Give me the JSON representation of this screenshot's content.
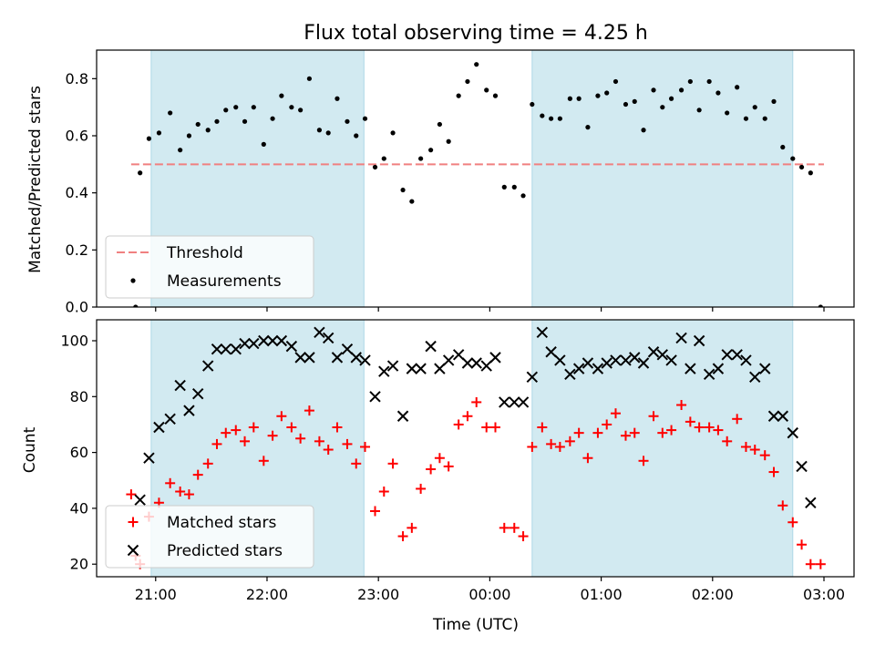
{
  "chart_data": {
    "title": "Flux total observing time = 4.25 h",
    "xlabel": "Time (UTC)",
    "x_ticks": [
      "21:00",
      "22:00",
      "23:00",
      "00:00",
      "01:00",
      "02:00",
      "03:00"
    ],
    "x_range_hours": [
      20.47,
      27.27
    ],
    "shaded_spans": [
      [
        20.96,
        22.87
      ],
      [
        24.38,
        26.72
      ]
    ],
    "span_color": "#add8e6",
    "panels": [
      {
        "type": "scatter",
        "ylabel": "Matched/Predicted stars",
        "ylim": [
          0,
          0.9
        ],
        "yticks": [
          0.0,
          0.2,
          0.4,
          0.6,
          0.8
        ],
        "legend_position": "lower-left",
        "threshold": {
          "name": "Threshold",
          "value": 0.5,
          "x_from": 20.78,
          "x_to": 27.0,
          "color": "#f08080"
        },
        "series": [
          {
            "name": "Measurements",
            "marker": "dot",
            "color": "#000000",
            "points": [
              [
                20.82,
                0.0
              ],
              [
                20.86,
                0.47
              ],
              [
                20.94,
                0.59
              ],
              [
                21.03,
                0.61
              ],
              [
                21.13,
                0.68
              ],
              [
                21.22,
                0.55
              ],
              [
                21.3,
                0.6
              ],
              [
                21.38,
                0.64
              ],
              [
                21.47,
                0.62
              ],
              [
                21.55,
                0.65
              ],
              [
                21.63,
                0.69
              ],
              [
                21.72,
                0.7
              ],
              [
                21.8,
                0.65
              ],
              [
                21.88,
                0.7
              ],
              [
                21.97,
                0.57
              ],
              [
                22.05,
                0.66
              ],
              [
                22.13,
                0.74
              ],
              [
                22.22,
                0.7
              ],
              [
                22.3,
                0.69
              ],
              [
                22.38,
                0.8
              ],
              [
                22.47,
                0.62
              ],
              [
                22.55,
                0.61
              ],
              [
                22.63,
                0.73
              ],
              [
                22.72,
                0.65
              ],
              [
                22.8,
                0.6
              ],
              [
                22.88,
                0.66
              ],
              [
                22.97,
                0.49
              ],
              [
                23.05,
                0.52
              ],
              [
                23.13,
                0.61
              ],
              [
                23.22,
                0.41
              ],
              [
                23.3,
                0.37
              ],
              [
                23.38,
                0.52
              ],
              [
                23.47,
                0.55
              ],
              [
                23.55,
                0.64
              ],
              [
                23.63,
                0.58
              ],
              [
                23.72,
                0.74
              ],
              [
                23.8,
                0.79
              ],
              [
                23.88,
                0.85
              ],
              [
                23.97,
                0.76
              ],
              [
                24.05,
                0.74
              ],
              [
                24.13,
                0.42
              ],
              [
                24.22,
                0.42
              ],
              [
                24.3,
                0.39
              ],
              [
                24.38,
                0.71
              ],
              [
                24.47,
                0.67
              ],
              [
                24.55,
                0.66
              ],
              [
                24.63,
                0.66
              ],
              [
                24.72,
                0.73
              ],
              [
                24.8,
                0.73
              ],
              [
                24.88,
                0.63
              ],
              [
                24.97,
                0.74
              ],
              [
                25.05,
                0.75
              ],
              [
                25.13,
                0.79
              ],
              [
                25.22,
                0.71
              ],
              [
                25.3,
                0.72
              ],
              [
                25.38,
                0.62
              ],
              [
                25.47,
                0.76
              ],
              [
                25.55,
                0.7
              ],
              [
                25.63,
                0.73
              ],
              [
                25.72,
                0.76
              ],
              [
                25.8,
                0.79
              ],
              [
                25.88,
                0.69
              ],
              [
                25.97,
                0.79
              ],
              [
                26.05,
                0.75
              ],
              [
                26.13,
                0.68
              ],
              [
                26.22,
                0.77
              ],
              [
                26.3,
                0.66
              ],
              [
                26.38,
                0.7
              ],
              [
                26.47,
                0.66
              ],
              [
                26.55,
                0.72
              ],
              [
                26.63,
                0.56
              ],
              [
                26.72,
                0.52
              ],
              [
                26.8,
                0.49
              ],
              [
                26.88,
                0.47
              ],
              [
                26.97,
                0.0
              ]
            ]
          }
        ]
      },
      {
        "type": "scatter",
        "ylabel": "Count",
        "ylim": [
          15.5,
          107.5
        ],
        "yticks": [
          20,
          40,
          60,
          80,
          100
        ],
        "legend_position": "lower-left",
        "series": [
          {
            "name": "Matched stars",
            "marker": "plus",
            "color": "#ff0000",
            "points": [
              [
                20.78,
                45
              ],
              [
                20.82,
                23
              ],
              [
                20.86,
                20
              ],
              [
                20.94,
                37
              ],
              [
                21.03,
                42
              ],
              [
                21.13,
                49
              ],
              [
                21.22,
                46
              ],
              [
                21.3,
                45
              ],
              [
                21.38,
                52
              ],
              [
                21.47,
                56
              ],
              [
                21.55,
                63
              ],
              [
                21.63,
                67
              ],
              [
                21.72,
                68
              ],
              [
                21.8,
                64
              ],
              [
                21.88,
                69
              ],
              [
                21.97,
                57
              ],
              [
                22.05,
                66
              ],
              [
                22.13,
                73
              ],
              [
                22.22,
                69
              ],
              [
                22.3,
                65
              ],
              [
                22.38,
                75
              ],
              [
                22.47,
                64
              ],
              [
                22.55,
                61
              ],
              [
                22.63,
                69
              ],
              [
                22.72,
                63
              ],
              [
                22.8,
                56
              ],
              [
                22.88,
                62
              ],
              [
                22.97,
                39
              ],
              [
                23.05,
                46
              ],
              [
                23.13,
                56
              ],
              [
                23.22,
                30
              ],
              [
                23.3,
                33
              ],
              [
                23.38,
                47
              ],
              [
                23.47,
                54
              ],
              [
                23.55,
                58
              ],
              [
                23.63,
                55
              ],
              [
                23.72,
                70
              ],
              [
                23.8,
                73
              ],
              [
                23.88,
                78
              ],
              [
                23.97,
                69
              ],
              [
                24.05,
                69
              ],
              [
                24.13,
                33
              ],
              [
                24.22,
                33
              ],
              [
                24.3,
                30
              ],
              [
                24.38,
                62
              ],
              [
                24.47,
                69
              ],
              [
                24.55,
                63
              ],
              [
                24.63,
                62
              ],
              [
                24.72,
                64
              ],
              [
                24.8,
                67
              ],
              [
                24.88,
                58
              ],
              [
                24.97,
                67
              ],
              [
                25.05,
                70
              ],
              [
                25.13,
                74
              ],
              [
                25.22,
                66
              ],
              [
                25.3,
                67
              ],
              [
                25.38,
                57
              ],
              [
                25.47,
                73
              ],
              [
                25.55,
                67
              ],
              [
                25.63,
                68
              ],
              [
                25.72,
                77
              ],
              [
                25.8,
                71
              ],
              [
                25.88,
                69
              ],
              [
                25.97,
                69
              ],
              [
                26.05,
                68
              ],
              [
                26.13,
                64
              ],
              [
                26.22,
                72
              ],
              [
                26.3,
                62
              ],
              [
                26.38,
                61
              ],
              [
                26.47,
                59
              ],
              [
                26.55,
                53
              ],
              [
                26.63,
                41
              ],
              [
                26.72,
                35
              ],
              [
                26.8,
                27
              ],
              [
                26.88,
                20
              ],
              [
                26.97,
                20
              ]
            ]
          },
          {
            "name": "Predicted stars",
            "marker": "x",
            "color": "#000000",
            "points": [
              [
                20.86,
                43
              ],
              [
                20.94,
                58
              ],
              [
                21.03,
                69
              ],
              [
                21.13,
                72
              ],
              [
                21.22,
                84
              ],
              [
                21.3,
                75
              ],
              [
                21.38,
                81
              ],
              [
                21.47,
                91
              ],
              [
                21.55,
                97
              ],
              [
                21.63,
                97
              ],
              [
                21.72,
                97
              ],
              [
                21.8,
                99
              ],
              [
                21.88,
                99
              ],
              [
                21.97,
                100
              ],
              [
                22.05,
                100
              ],
              [
                22.13,
                100
              ],
              [
                22.22,
                98
              ],
              [
                22.3,
                94
              ],
              [
                22.38,
                94
              ],
              [
                22.47,
                103
              ],
              [
                22.55,
                101
              ],
              [
                22.63,
                94
              ],
              [
                22.72,
                97
              ],
              [
                22.8,
                94
              ],
              [
                22.88,
                93
              ],
              [
                22.97,
                80
              ],
              [
                23.05,
                89
              ],
              [
                23.13,
                91
              ],
              [
                23.22,
                73
              ],
              [
                23.3,
                90
              ],
              [
                23.38,
                90
              ],
              [
                23.47,
                98
              ],
              [
                23.55,
                90
              ],
              [
                23.63,
                93
              ],
              [
                23.72,
                95
              ],
              [
                23.8,
                92
              ],
              [
                23.88,
                92
              ],
              [
                23.97,
                91
              ],
              [
                24.05,
                94
              ],
              [
                24.13,
                78
              ],
              [
                24.22,
                78
              ],
              [
                24.3,
                78
              ],
              [
                24.38,
                87
              ],
              [
                24.47,
                103
              ],
              [
                24.55,
                96
              ],
              [
                24.63,
                93
              ],
              [
                24.72,
                88
              ],
              [
                24.8,
                90
              ],
              [
                24.88,
                92
              ],
              [
                24.97,
                90
              ],
              [
                25.05,
                92
              ],
              [
                25.13,
                93
              ],
              [
                25.22,
                93
              ],
              [
                25.3,
                94
              ],
              [
                25.38,
                92
              ],
              [
                25.47,
                96
              ],
              [
                25.55,
                95
              ],
              [
                25.63,
                93
              ],
              [
                25.72,
                101
              ],
              [
                25.8,
                90
              ],
              [
                25.88,
                100
              ],
              [
                25.97,
                88
              ],
              [
                26.05,
                90
              ],
              [
                26.13,
                95
              ],
              [
                26.22,
                95
              ],
              [
                26.3,
                93
              ],
              [
                26.38,
                87
              ],
              [
                26.47,
                90
              ],
              [
                26.55,
                73
              ],
              [
                26.63,
                73
              ],
              [
                26.72,
                67
              ],
              [
                26.8,
                55
              ],
              [
                26.88,
                42
              ]
            ]
          }
        ]
      }
    ]
  }
}
